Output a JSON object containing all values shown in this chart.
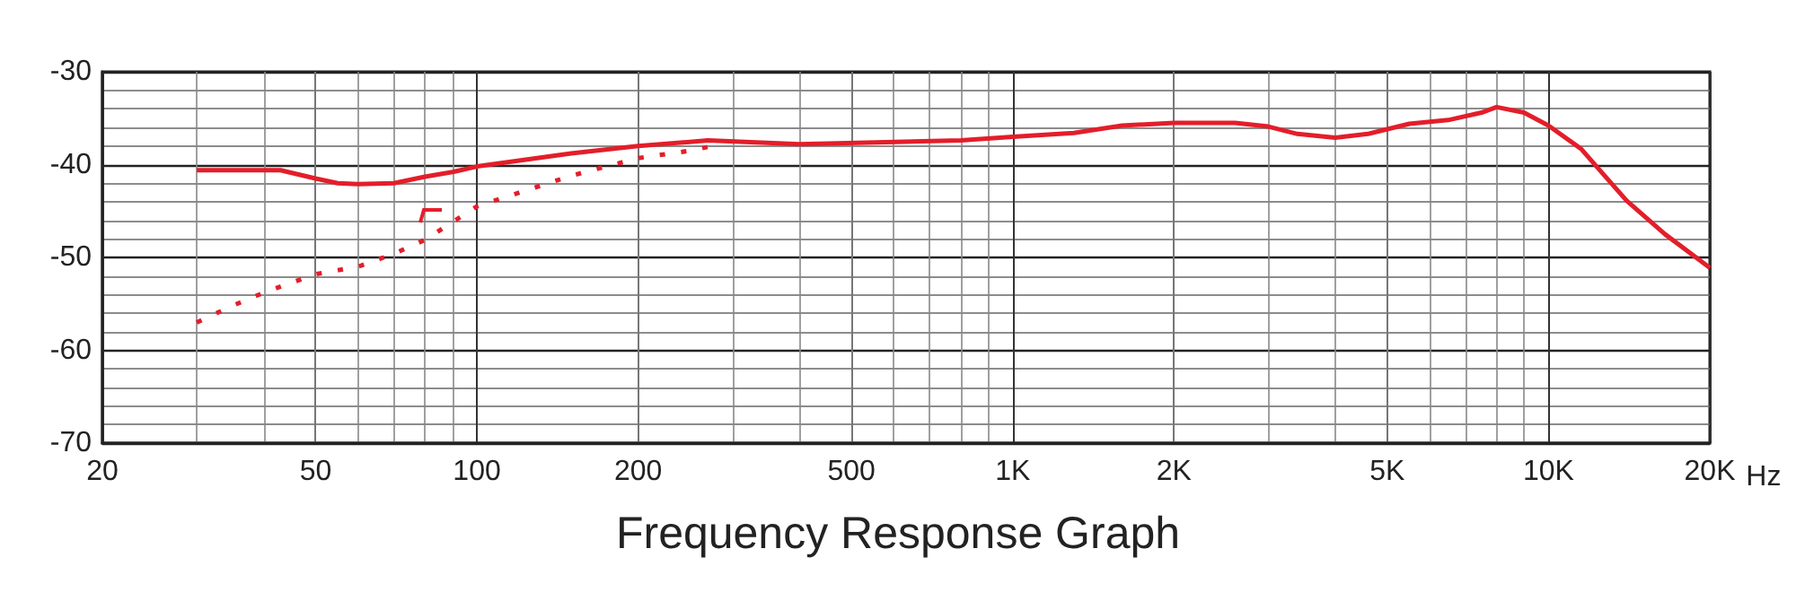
{
  "chart_data": {
    "type": "line",
    "title": "Frequency Response Graph",
    "xlabel": "Hz",
    "log": "x",
    "grid": true,
    "marker": "none",
    "xlim": [
      20,
      20000
    ],
    "xticks": [
      20,
      50,
      100,
      200,
      500,
      {
        "value": 1000,
        "label": "1K"
      },
      {
        "value": 2000,
        "label": "2K"
      },
      {
        "value": 5000,
        "label": "5K"
      },
      {
        "value": 10000,
        "label": "10K"
      },
      {
        "value": 20000,
        "label": "20K"
      }
    ],
    "ylim": [
      -70,
      -30
    ],
    "yticks": [
      -70,
      -60,
      -50,
      -40,
      -30
    ],
    "series": [
      {
        "color": "#e31e2a",
        "line_style": "solid",
        "x": [
          30,
          40,
          43,
          50,
          55,
          60,
          70,
          80,
          90,
          100,
          150,
          200,
          270,
          400,
          800,
          1000,
          1300,
          1600,
          2000,
          2600,
          3000,
          3400,
          4000,
          4600,
          5500,
          6500,
          7500,
          8000,
          9000,
          10000,
          11500,
          14000,
          16500,
          20000
        ],
        "values": [
          -40.6,
          -40.6,
          -40.6,
          -41.5,
          -42,
          -42.1,
          -42,
          -41.3,
          -40.8,
          -40.2,
          -38.8,
          -38,
          -37.4,
          -37.8,
          -37.4,
          -37,
          -36.6,
          -35.8,
          -35.5,
          -35.5,
          -35.9,
          -36.7,
          -37.1,
          -36.7,
          -35.6,
          -35.2,
          -34.4,
          -33.8,
          -34.4,
          -35.8,
          -38.3,
          -43.9,
          -47.5,
          -51.1
        ]
      },
      {
        "color": "#e31e2a",
        "line_style": "dotted",
        "x": [
          30,
          35,
          40,
          50,
          60,
          70,
          80,
          100,
          150,
          200,
          250,
          280
        ],
        "values": [
          -57,
          -55.2,
          -53.8,
          -51.8,
          -51,
          -49.6,
          -48.1,
          -44.5,
          -41.2,
          -39.3,
          -38.5,
          -37.9
        ]
      }
    ]
  }
}
